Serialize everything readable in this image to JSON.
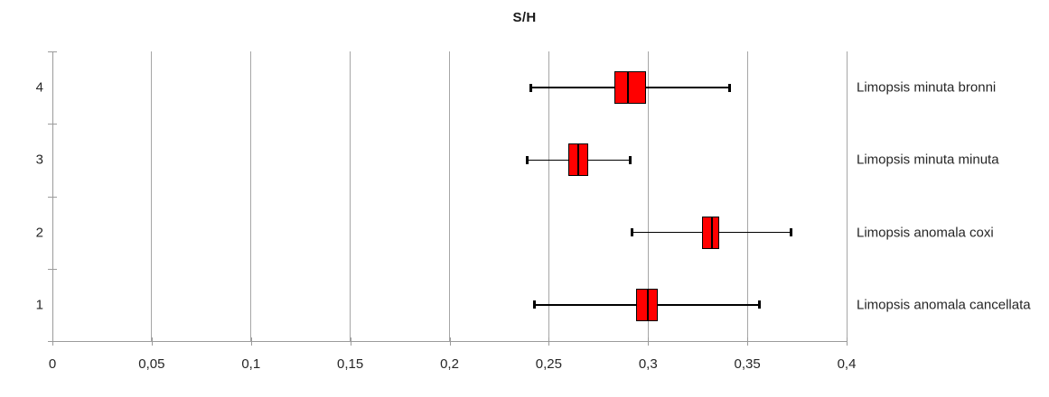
{
  "title": "S/H",
  "colors": {
    "box_fill": "#ff0000",
    "box_border": "#000000",
    "whisker": "#000000",
    "gridline": "#a6a6a6",
    "axis": "#9b9b9b",
    "text": "#262626"
  },
  "chart_data": {
    "type": "boxplot",
    "orientation": "horizontal",
    "title": "S/H",
    "xlabel": "",
    "ylabel": "",
    "xlim": [
      0,
      0.4
    ],
    "x_ticks": [
      0,
      0.05,
      0.1,
      0.15,
      0.2,
      0.25,
      0.3,
      0.35,
      0.4
    ],
    "x_tick_labels": [
      "0",
      "0,05",
      "0,1",
      "0,15",
      "0,2",
      "0,25",
      "0,3",
      "0,35",
      "0,4"
    ],
    "y_tick_labels": [
      "4",
      "3",
      "2",
      "1"
    ],
    "grid": "vertical",
    "legend_position": "right-of-plot-labels",
    "series": [
      {
        "position": 4,
        "label": "Limopsis minuta bronni",
        "min": 0.241,
        "q1": 0.283,
        "median": 0.29,
        "q3": 0.299,
        "max": 0.341
      },
      {
        "position": 3,
        "label": "Limopsis minuta minuta",
        "min": 0.239,
        "q1": 0.26,
        "median": 0.265,
        "q3": 0.27,
        "max": 0.291
      },
      {
        "position": 2,
        "label": "Limopsis anomala coxi",
        "min": 0.292,
        "q1": 0.327,
        "median": 0.332,
        "q3": 0.336,
        "max": 0.372
      },
      {
        "position": 1,
        "label": "Limopsis anomala cancellata",
        "min": 0.243,
        "q1": 0.294,
        "median": 0.3,
        "q3": 0.305,
        "max": 0.356
      }
    ]
  }
}
